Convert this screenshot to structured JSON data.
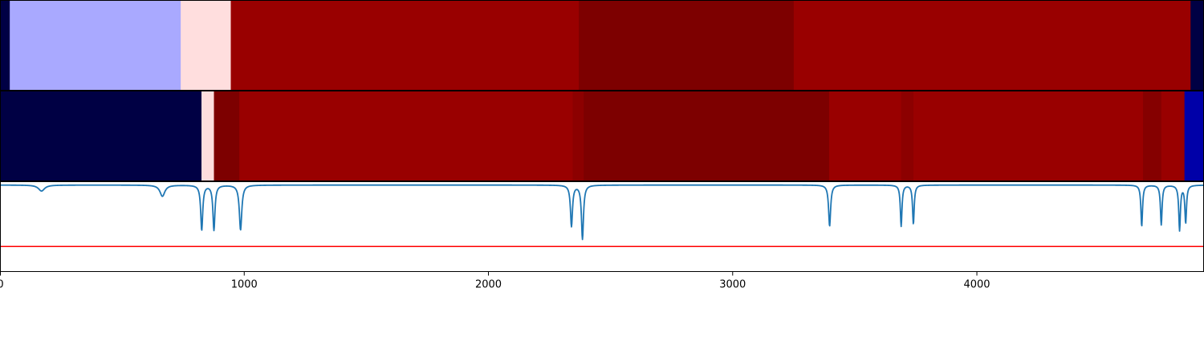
{
  "chart_data": {
    "type": "heatmap",
    "x_range": [
      0,
      4930
    ],
    "x_ticks": [
      0,
      1000,
      2000,
      3000,
      4000
    ],
    "x_tick_labels": [
      "0",
      "1000",
      "2000",
      "3000",
      "4000"
    ],
    "grid": false,
    "legend": "none",
    "tracks": [
      {
        "type": "heatmap",
        "segments": [
          {
            "x0": 0,
            "x1": 40,
            "color": "#000044"
          },
          {
            "x0": 40,
            "x1": 740,
            "color": "#a9a9ff"
          },
          {
            "x0": 740,
            "x1": 945,
            "color": "#ffdede"
          },
          {
            "x0": 945,
            "x1": 2370,
            "color": "#990000"
          },
          {
            "x0": 2370,
            "x1": 3250,
            "color": "#7d0000"
          },
          {
            "x0": 3250,
            "x1": 4875,
            "color": "#990000"
          },
          {
            "x0": 4875,
            "x1": 4930,
            "color": "#000044"
          }
        ]
      },
      {
        "type": "heatmap",
        "segments": [
          {
            "x0": 0,
            "x1": 825,
            "color": "#000044"
          },
          {
            "x0": 825,
            "x1": 876,
            "color": "#ffdede"
          },
          {
            "x0": 876,
            "x1": 980,
            "color": "#7d0000"
          },
          {
            "x0": 980,
            "x1": 2345,
            "color": "#990000"
          },
          {
            "x0": 2345,
            "x1": 2390,
            "color": "#8c0000"
          },
          {
            "x0": 2390,
            "x1": 3395,
            "color": "#7d0000"
          },
          {
            "x0": 3395,
            "x1": 3690,
            "color": "#990000"
          },
          {
            "x0": 3690,
            "x1": 3740,
            "color": "#8c0000"
          },
          {
            "x0": 3740,
            "x1": 4680,
            "color": "#990000"
          },
          {
            "x0": 4680,
            "x1": 4755,
            "color": "#850000"
          },
          {
            "x0": 4755,
            "x1": 4850,
            "color": "#990000"
          },
          {
            "x0": 4850,
            "x1": 4930,
            "color": "#0000a8"
          }
        ]
      },
      {
        "type": "line",
        "ylim": [
          -1.15,
          0.05
        ],
        "baseline": 0,
        "threshold": {
          "value": -0.82,
          "color": "#ff0000"
        },
        "line_color": "#1f77b4",
        "dips": [
          {
            "x": 170,
            "depth": 0.08,
            "width": 15
          },
          {
            "x": 665,
            "depth": 0.15,
            "width": 12
          },
          {
            "x": 826,
            "depth": 0.6,
            "width": 5
          },
          {
            "x": 876,
            "depth": 0.6,
            "width": 5
          },
          {
            "x": 985,
            "depth": 0.6,
            "width": 6
          },
          {
            "x": 2340,
            "depth": 0.55,
            "width": 5
          },
          {
            "x": 2385,
            "depth": 0.72,
            "width": 5
          },
          {
            "x": 3397,
            "depth": 0.55,
            "width": 5
          },
          {
            "x": 3690,
            "depth": 0.55,
            "width": 4
          },
          {
            "x": 3740,
            "depth": 0.52,
            "width": 4
          },
          {
            "x": 4675,
            "depth": 0.55,
            "width": 4
          },
          {
            "x": 4755,
            "depth": 0.53,
            "width": 4
          },
          {
            "x": 4830,
            "depth": 0.6,
            "width": 4
          },
          {
            "x": 4855,
            "depth": 0.5,
            "width": 4
          }
        ]
      }
    ]
  }
}
